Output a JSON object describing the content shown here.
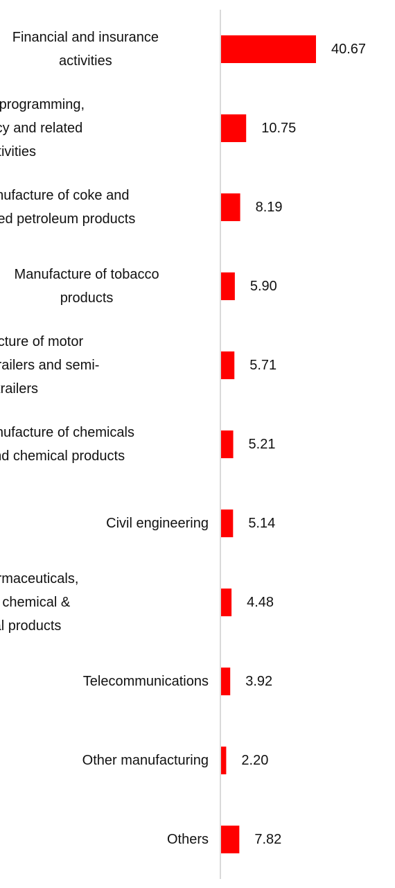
{
  "chart_data": {
    "type": "bar",
    "orientation": "horizontal",
    "categories": [
      "Financial and insurance activities",
      "Computer programming, consultancy and related activities",
      "Manufacture of coke and refined petroleum products",
      "Manufacture of tobacco products",
      "Manufacture of motor vehicles, trailers and semi-trailers",
      "Manufacture of chemicals and chemical products",
      "Civil engineering",
      "Mfg of pharmaceuticals, medicinal chemical & botanical products",
      "Telecommunications",
      "Other manufacturing",
      "Others"
    ],
    "category_label_lines": [
      [
        "Financial and insurance",
        "activities"
      ],
      [
        "Computer programming,",
        "consultancy and related",
        "activities"
      ],
      [
        "Manufacture of coke and",
        "refined petroleum products"
      ],
      [
        "Manufacture of tobacco",
        "products"
      ],
      [
        "Manufacture of motor",
        "vehicles, trailers and semi-",
        "trailers"
      ],
      [
        "Manufacture of chemicals",
        "and chemical products"
      ],
      [
        "Civil engineering"
      ],
      [
        "Mfg of pharmaceuticals,",
        "medicinal chemical &",
        "botanical products"
      ],
      [
        "Telecommunications"
      ],
      [
        "Other manufacturing"
      ],
      [
        "Others"
      ]
    ],
    "values": [
      40.67,
      10.75,
      8.19,
      5.9,
      5.71,
      5.21,
      5.14,
      4.48,
      3.92,
      2.2,
      7.82
    ],
    "value_labels": [
      "40.67",
      "10.75",
      "8.19",
      "5.90",
      "5.71",
      "5.21",
      "5.14",
      "4.48",
      "3.92",
      "2.20",
      "7.82"
    ],
    "title": "",
    "xlabel": "",
    "ylabel": "",
    "xlim": [
      0,
      50
    ],
    "grid": false,
    "legend": "none",
    "colors": {
      "bar": "#ff0000",
      "axis": "#d9d9d9",
      "text": "#111111",
      "background": "#ffffff"
    }
  }
}
